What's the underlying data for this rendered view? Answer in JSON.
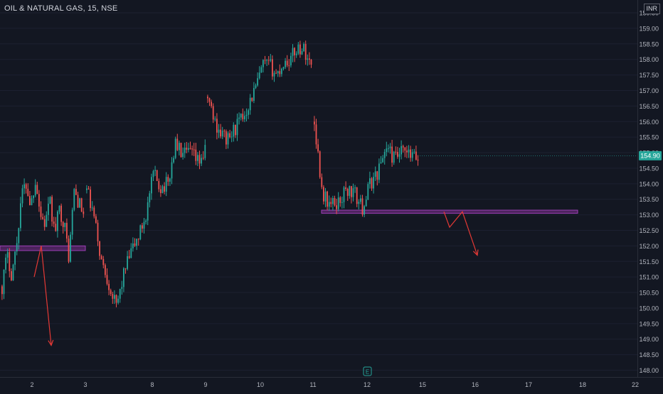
{
  "header": {
    "symbol_title": "OIL & NATURAL GAS, 15, NSE",
    "currency": "INR"
  },
  "colors": {
    "background": "#131722",
    "up": "#26a69a",
    "down": "#ef5350",
    "zone": "#7b2d8e",
    "arrow": "#e53935",
    "axis_text": "#b2b5be",
    "price_tag": "#26a69a"
  },
  "chart_data": {
    "type": "candlestick",
    "title": "OIL & NATURAL GAS, 15, NSE",
    "ylim": [
      147.8,
      159.8
    ],
    "y_ticks": [
      "148.00",
      "148.50",
      "149.00",
      "149.50",
      "150.00",
      "150.50",
      "151.00",
      "151.50",
      "152.00",
      "152.50",
      "153.00",
      "153.50",
      "154.00",
      "154.50",
      "155.00",
      "155.50",
      "156.00",
      "156.50",
      "157.00",
      "157.50",
      "158.00",
      "158.50",
      "159.00",
      "159.50"
    ],
    "x_ticks": [
      "2",
      "3",
      "8",
      "9",
      "10",
      "11",
      "12",
      "15",
      "16",
      "17",
      "18",
      "22"
    ],
    "last_price": "154.90",
    "segments": [
      {
        "x0": 2,
        "x1": 120,
        "pts": [
          150.7,
          151.7,
          151.1,
          152.0,
          153.6,
          154.0,
          153.3,
          154.2,
          153.0,
          152.7,
          153.4,
          152.4,
          153.2,
          152.7,
          151.6,
          153.8,
          153.4,
          153.0
        ]
      },
      {
        "x0": 121,
        "x1": 290,
        "pts": [
          153.8,
          152.9,
          151.5,
          150.8,
          150.0,
          151.1,
          151.8,
          152.3,
          153.0,
          154.3,
          153.9,
          154.0,
          155.3,
          154.9,
          155.0,
          154.7,
          155.0
        ]
      },
      {
        "x0": 291,
        "x1": 440,
        "pts": [
          156.8,
          156.0,
          155.6,
          155.4,
          155.8,
          156.1,
          156.6,
          157.1,
          157.8,
          157.8,
          157.5,
          157.9,
          158.0,
          158.4,
          158.3,
          157.8
        ]
      },
      {
        "x0": 441,
        "x1": 590,
        "pts": [
          156.0,
          153.7,
          153.3,
          153.4,
          153.8,
          153.7,
          153.2,
          154.0,
          154.4,
          155.2,
          154.8,
          155.0,
          154.9,
          154.8
        ]
      }
    ],
    "zones": [
      {
        "x0": 0,
        "x1": 120,
        "low": 151.85,
        "high": 152.0
      },
      {
        "x0": 452,
        "x1": 812,
        "low": 153.05,
        "high": 153.15
      }
    ],
    "arrows": [
      {
        "points": [
          [
            48,
            151.0
          ],
          [
            58,
            152.0
          ],
          [
            72,
            148.8
          ]
        ]
      },
      {
        "points": [
          [
            624,
            153.1
          ],
          [
            632,
            152.6
          ],
          [
            650,
            153.1
          ],
          [
            671,
            151.7
          ]
        ]
      }
    ]
  }
}
